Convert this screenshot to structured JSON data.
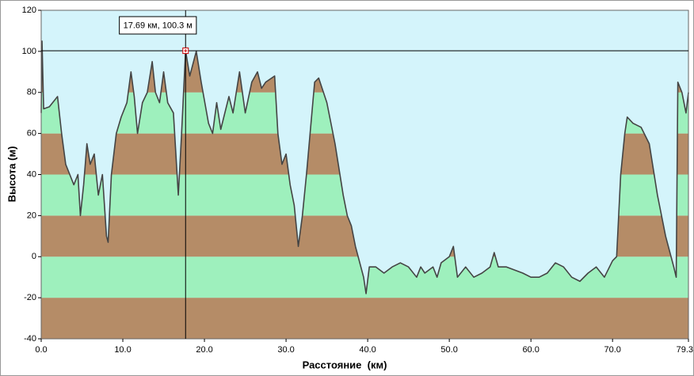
{
  "chart_data": {
    "type": "area",
    "ylabel": "Высота (м)",
    "xlabel": "Расстояние  (км)",
    "xlim": [
      0,
      79.3
    ],
    "ylim": [
      -40,
      120
    ],
    "xticks": [
      {
        "value": 0,
        "label": "0.0"
      },
      {
        "value": 10,
        "label": "10.0"
      },
      {
        "value": 20,
        "label": "20.0"
      },
      {
        "value": 30,
        "label": "30.0"
      },
      {
        "value": 40,
        "label": "40.0"
      },
      {
        "value": 50,
        "label": "50.0"
      },
      {
        "value": 60,
        "label": "60.0"
      },
      {
        "value": 70,
        "label": "70.0"
      },
      79.3
    ],
    "yticks": [
      -40,
      -20,
      0,
      20,
      40,
      60,
      80,
      100,
      120
    ],
    "band_colors": [
      "#b58c67",
      "#9ef0bd"
    ],
    "background": "#d4f4fb",
    "line_color": "#444444",
    "cursor": {
      "x": 17.69,
      "y": 100.3,
      "label": "17.69 км, 100.3 м",
      "color": "#cc0000"
    },
    "x": [
      0,
      0.1,
      0.3,
      1.0,
      2.0,
      2.5,
      3.0,
      3.5,
      4.0,
      4.5,
      4.8,
      5.2,
      5.6,
      6.0,
      6.5,
      7.0,
      7.5,
      8.0,
      8.2,
      8.6,
      9.2,
      9.8,
      10.5,
      11.0,
      11.4,
      11.8,
      12.4,
      13.0,
      13.6,
      14.0,
      14.5,
      15.0,
      15.5,
      16.2,
      16.8,
      17.2,
      17.69,
      18.2,
      19.0,
      19.6,
      20.5,
      21.0,
      21.5,
      22.0,
      23.0,
      23.5,
      24.3,
      25.0,
      25.8,
      26.5,
      27.0,
      27.5,
      28.6,
      29.0,
      29.5,
      30.0,
      30.5,
      31.0,
      31.5,
      32.0,
      32.5,
      33.5,
      34.0,
      35.0,
      36.0,
      37.0,
      37.5,
      38.0,
      38.5,
      39.5,
      39.8,
      40.2,
      41.0,
      42.0,
      43.0,
      44.0,
      45.0,
      46.0,
      46.5,
      47.0,
      48.0,
      48.5,
      49.0,
      50.0,
      50.5,
      51.0,
      52.0,
      53.0,
      54.0,
      55.0,
      55.5,
      56.0,
      57.0,
      59.0,
      60.0,
      61.0,
      62.0,
      63.0,
      64.0,
      65.0,
      66.0,
      67.0,
      68.0,
      69.0,
      70.0,
      70.5,
      71.0,
      71.5,
      71.8,
      72.5,
      73.5,
      74.5,
      75.5,
      76.5,
      77.5,
      77.8,
      78.0,
      78.5,
      79.0,
      79.3
    ],
    "values": [
      70,
      105,
      72,
      73,
      78,
      60,
      45,
      40,
      35,
      40,
      20,
      35,
      55,
      45,
      50,
      30,
      40,
      10,
      7,
      40,
      60,
      68,
      75,
      90,
      78,
      60,
      75,
      80,
      95,
      80,
      75,
      90,
      75,
      70,
      30,
      60,
      100.3,
      88,
      100,
      85,
      65,
      60,
      75,
      62,
      78,
      70,
      90,
      70,
      85,
      90,
      82,
      85,
      88,
      60,
      45,
      50,
      35,
      25,
      5,
      20,
      40,
      85,
      87,
      75,
      55,
      30,
      20,
      15,
      5,
      -10,
      -18,
      -5,
      -5,
      -8,
      -5,
      -3,
      -5,
      -10,
      -5,
      -8,
      -5,
      -10,
      -3,
      0,
      5,
      -10,
      -5,
      -10,
      -8,
      -5,
      2,
      -5,
      -5,
      -8,
      -10,
      -10,
      -8,
      -3,
      -5,
      -10,
      -12,
      -8,
      -5,
      -10,
      -2,
      0,
      40,
      60,
      68,
      65,
      63,
      55,
      30,
      10,
      -5,
      -10,
      85,
      80,
      70,
      80
    ]
  }
}
